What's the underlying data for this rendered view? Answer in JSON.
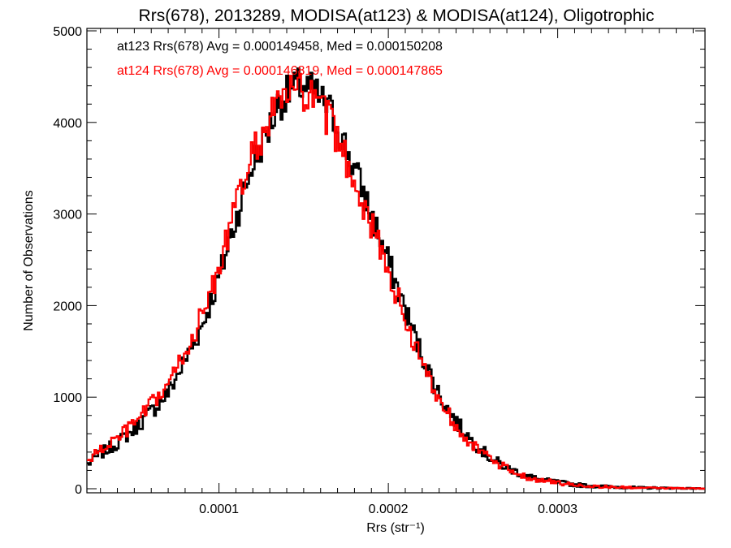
{
  "chart_data": {
    "type": "line",
    "title": "Rrs(678), 2013289, MODISA(at123) & MODISA(at124), Oligotrophic",
    "xlabel": "Rrs (str⁻¹)",
    "ylabel": "Number of Observations",
    "xlim": [
      2.2e-05,
      0.000387
    ],
    "ylim": [
      0,
      5000
    ],
    "x_ticks": [
      {
        "value": 0.0001,
        "label": "0.0001"
      },
      {
        "value": 0.0002,
        "label": "0.0002"
      },
      {
        "value": 0.0003,
        "label": "0.0003"
      }
    ],
    "y_ticks": [
      {
        "value": 0,
        "label": "0"
      },
      {
        "value": 1000,
        "label": "1000"
      },
      {
        "value": 2000,
        "label": "2000"
      },
      {
        "value": 3000,
        "label": "3000"
      },
      {
        "value": 4000,
        "label": "4000"
      },
      {
        "value": 5000,
        "label": "5000"
      }
    ],
    "step_histogram": true,
    "series": [
      {
        "name": "at123",
        "color": "#000000",
        "annotation": "at123 Rrs(678) Avg = 0.000149458, Med = 0.000150208",
        "x": [
          2.2e-05,
          3e-05,
          4e-05,
          5e-05,
          6e-05,
          7e-05,
          8e-05,
          9e-05,
          0.0001,
          0.00011,
          0.00012,
          0.00013,
          0.000135,
          0.00014,
          0.000145,
          0.00015,
          0.000155,
          0.00016,
          0.000165,
          0.00017,
          0.00018,
          0.00019,
          0.0002,
          0.00021,
          0.00022,
          0.00023,
          0.00024,
          0.00025,
          0.00026,
          0.00027,
          0.00028,
          0.00029,
          0.0003,
          0.00031,
          0.00032,
          0.00033,
          0.00034,
          0.00035,
          0.00036,
          0.00037,
          0.00038,
          0.000387
        ],
        "y": [
          260,
          380,
          500,
          650,
          840,
          1050,
          1400,
          1780,
          2300,
          2950,
          3550,
          3950,
          4200,
          4300,
          4380,
          4400,
          4350,
          4250,
          4150,
          3950,
          3500,
          3000,
          2480,
          1950,
          1450,
          1030,
          730,
          510,
          340,
          230,
          150,
          95,
          70,
          45,
          30,
          22,
          15,
          10,
          8,
          5,
          3,
          2
        ]
      },
      {
        "name": "at124",
        "color": "#ff0000",
        "annotation": "at124 Rrs(678) Avg = 0.000146819, Med = 0.000147865",
        "x": [
          2.2e-05,
          3e-05,
          4e-05,
          5e-05,
          6e-05,
          7e-05,
          8e-05,
          9e-05,
          0.0001,
          0.00011,
          0.00012,
          0.00013,
          0.000135,
          0.00014,
          0.000145,
          0.00015,
          0.000155,
          0.00016,
          0.000165,
          0.00017,
          0.00018,
          0.00019,
          0.0002,
          0.00021,
          0.00022,
          0.00023,
          0.00024,
          0.00025,
          0.00026,
          0.00027,
          0.00028,
          0.00029,
          0.0003,
          0.00031,
          0.00032,
          0.00033,
          0.00034,
          0.00035,
          0.00036,
          0.00037,
          0.00038,
          0.000387
        ],
        "y": [
          300,
          420,
          550,
          710,
          910,
          1130,
          1490,
          1880,
          2420,
          3080,
          3660,
          4020,
          4230,
          4300,
          4330,
          4320,
          4250,
          4150,
          4020,
          3830,
          3380,
          2880,
          2370,
          1850,
          1370,
          980,
          690,
          480,
          320,
          215,
          140,
          90,
          65,
          42,
          28,
          20,
          14,
          9,
          7,
          5,
          3,
          2
        ]
      }
    ]
  }
}
